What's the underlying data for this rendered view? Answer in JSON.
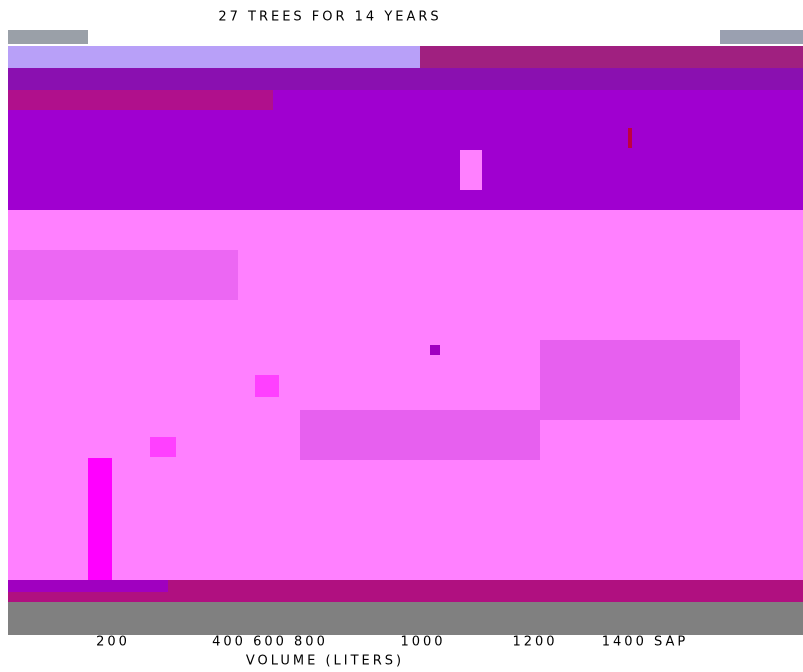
{
  "title": "27 TREES FOR 14 YEARS",
  "axis_labels": [
    "200",
    "400 600 800",
    "1000",
    "1200",
    "1400 SAP"
  ],
  "axis_title": "VOLUME (LITERS)"
}
